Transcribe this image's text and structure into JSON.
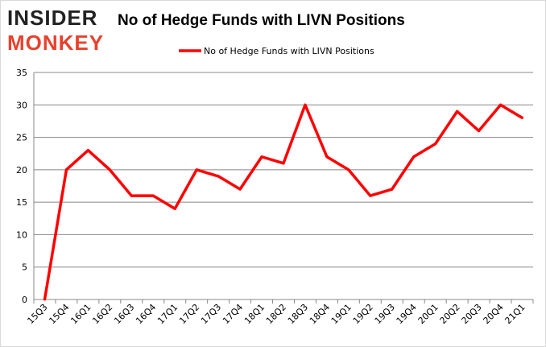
{
  "logo": {
    "line1": "INSIDER",
    "line2": "MONKEY"
  },
  "chart_data": {
    "type": "line",
    "title": "No of Hedge Funds with LIVN Positions",
    "xlabel": "",
    "ylabel": "",
    "categories": [
      "15Q3",
      "15Q4",
      "16Q1",
      "16Q2",
      "16Q3",
      "16Q4",
      "17Q1",
      "17Q2",
      "17Q3",
      "17Q4",
      "18Q1",
      "18Q2",
      "18Q3",
      "18Q4",
      "19Q1",
      "19Q2",
      "19Q3",
      "19Q4",
      "20Q1",
      "20Q2",
      "20Q3",
      "20Q4",
      "21Q1"
    ],
    "series": [
      {
        "name": "No of Hedge Funds with LIVN Positions",
        "color": "#ff0000",
        "values": [
          0,
          20,
          23,
          20,
          16,
          16,
          14,
          20,
          19,
          17,
          22,
          21,
          30,
          22,
          20,
          16,
          17,
          22,
          24,
          29,
          26,
          30,
          28
        ]
      }
    ],
    "ylim": [
      0,
      35
    ],
    "yticks": [
      0,
      5,
      10,
      15,
      20,
      25,
      30,
      35
    ],
    "grid": true,
    "legend": "top-center"
  }
}
